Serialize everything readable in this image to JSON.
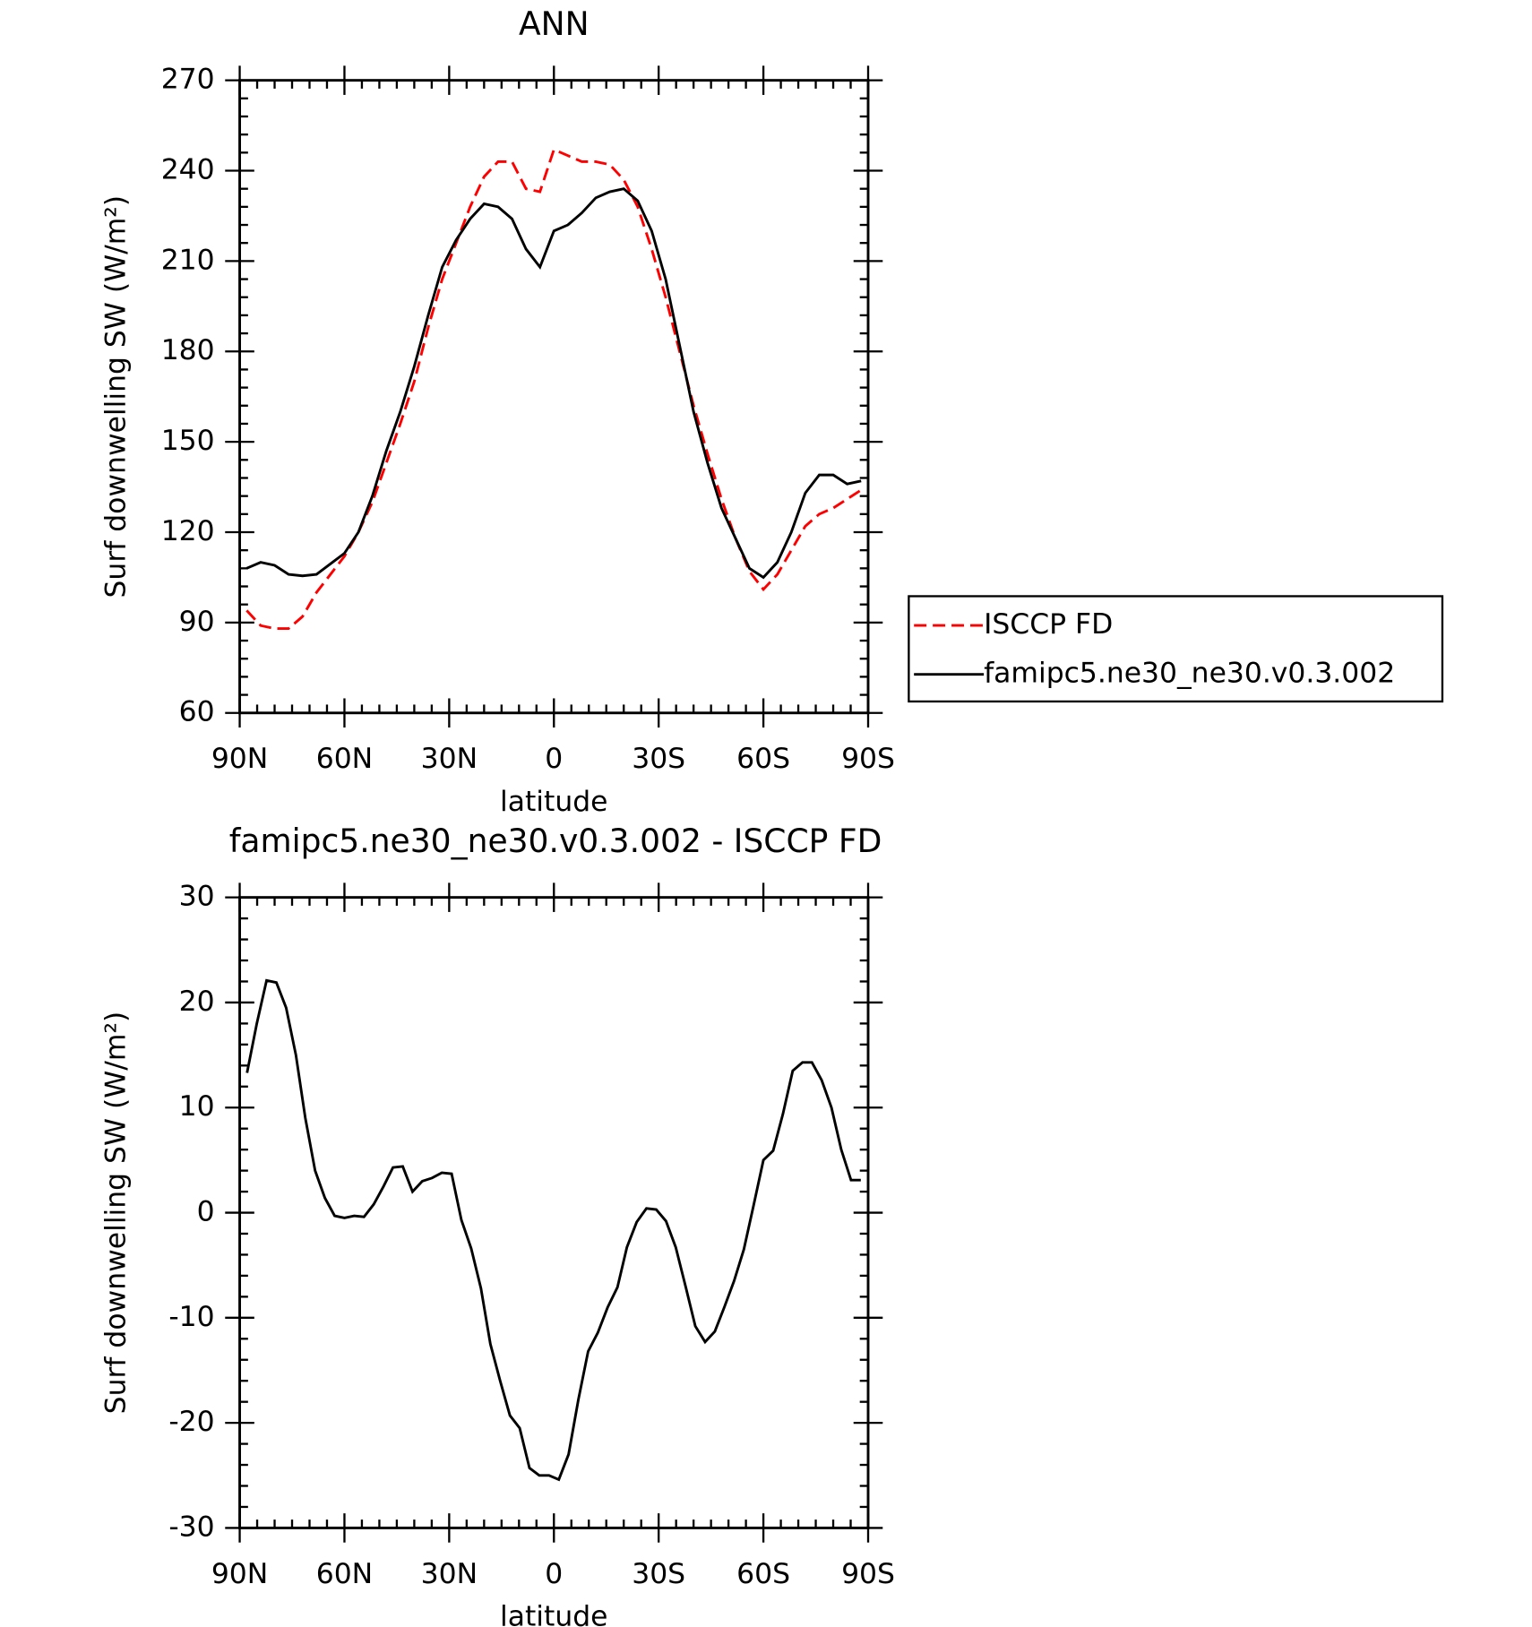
{
  "chart_data": [
    {
      "type": "line",
      "title": "ANN",
      "xlabel": "latitude",
      "ylabel": "Surf downwelling SW (W/m²)",
      "x": [
        88,
        84,
        80,
        76,
        72,
        68,
        64,
        60,
        56,
        52,
        48,
        44,
        40,
        36,
        32,
        28,
        24,
        20,
        16,
        12,
        8,
        4,
        0,
        -4,
        -8,
        -12,
        -16,
        -20,
        -24,
        -28,
        -32,
        -36,
        -40,
        -44,
        -48,
        -52,
        -56,
        -60,
        -64,
        -68,
        -72,
        -76,
        -80,
        -84,
        -88
      ],
      "xlim": [
        90,
        -90
      ],
      "xticks": [
        {
          "value": 90,
          "label": "90N"
        },
        {
          "value": 60,
          "label": "60N"
        },
        {
          "value": 30,
          "label": "30N"
        },
        0,
        {
          "value": -30,
          "label": "30S"
        },
        {
          "value": -60,
          "label": "60S"
        },
        {
          "value": -90,
          "label": "90S"
        }
      ],
      "ylim": [
        60,
        270
      ],
      "yticks": [
        60,
        90,
        120,
        150,
        180,
        210,
        240,
        270
      ],
      "legend": "right",
      "series": [
        {
          "name": "ISCCP FD",
          "color": "#ff0000",
          "style": "dashed",
          "values": [
            94,
            89,
            88,
            88,
            92,
            100,
            106,
            112,
            120,
            130,
            143,
            156,
            170,
            188,
            204,
            216,
            228,
            238,
            243,
            243,
            234,
            233,
            247,
            245,
            243,
            243,
            242,
            237,
            228,
            214,
            198,
            180,
            162,
            146,
            131,
            118,
            107,
            101,
            106,
            114,
            122,
            126,
            128,
            131,
            134
          ]
        },
        {
          "name": "famipc5.ne30_ne30.v0.3.002",
          "color": "#000000",
          "style": "solid",
          "values": [
            108,
            110,
            109,
            106,
            105.5,
            106,
            109.5,
            113,
            120,
            132,
            147,
            160,
            175,
            192,
            208,
            217,
            224,
            229,
            228,
            224,
            214,
            208,
            220,
            222,
            226,
            231,
            233,
            234,
            230,
            220,
            204,
            182,
            160,
            143,
            128,
            118,
            108,
            105,
            110,
            120,
            133,
            139,
            139,
            136,
            137
          ]
        }
      ]
    },
    {
      "type": "line",
      "title": "famipc5.ne30_ne30.v0.3.002 - ISCCP FD",
      "xlabel": "latitude",
      "ylabel": "Surf downwelling SW (W/m²)",
      "x": [
        87.9,
        85.1,
        82.3,
        79.5,
        76.7,
        73.9,
        71.2,
        68.4,
        65.6,
        62.8,
        60.0,
        57.2,
        54.4,
        51.6,
        48.8,
        46.1,
        43.3,
        40.5,
        37.7,
        34.9,
        32.1,
        29.3,
        26.5,
        23.7,
        20.9,
        18.2,
        15.4,
        12.6,
        9.8,
        7.0,
        4.2,
        1.4,
        -1.4,
        -4.2,
        -7.0,
        -9.8,
        -12.6,
        -15.4,
        -18.2,
        -20.9,
        -23.7,
        -26.5,
        -29.3,
        -32.1,
        -34.9,
        -37.7,
        -40.5,
        -43.3,
        -46.1,
        -48.8,
        -51.6,
        -54.4,
        -57.2,
        -60.0,
        -62.8,
        -65.6,
        -68.4,
        -71.2,
        -73.9,
        -76.7,
        -79.5,
        -82.3,
        -85.1,
        -87.9
      ],
      "xlim": [
        90,
        -90
      ],
      "xticks": [
        {
          "value": 90,
          "label": "90N"
        },
        {
          "value": 60,
          "label": "60N"
        },
        {
          "value": 30,
          "label": "30N"
        },
        0,
        {
          "value": -30,
          "label": "30S"
        },
        {
          "value": -60,
          "label": "60S"
        },
        {
          "value": -90,
          "label": "90S"
        }
      ],
      "ylim": [
        -30,
        30
      ],
      "yticks": [
        -30,
        -20,
        -10,
        0,
        10,
        20,
        30
      ],
      "series": [
        {
          "color": "#000000",
          "style": "solid",
          "values": [
            13.3,
            18,
            22.1,
            21.9,
            19.5,
            15,
            9,
            4,
            1.4,
            -0.3,
            -0.5,
            -0.3,
            -0.4,
            0.8,
            2.5,
            4.3,
            4.4,
            2,
            3,
            3.3,
            3.8,
            3.7,
            -0.7,
            -3.4,
            -7.2,
            -12.5,
            -16,
            -19.3,
            -20.5,
            -24.3,
            -25,
            -25,
            -25.4,
            -23,
            -17.8,
            -13.2,
            -11.4,
            -9,
            -7.1,
            -3.3,
            -0.9,
            0.4,
            0.3,
            -0.8,
            -3.3,
            -7,
            -10.8,
            -12.3,
            -11.3,
            -9,
            -6.5,
            -3.5,
            0.7,
            5,
            5.9,
            9.4,
            13.5,
            14.3,
            14.3,
            12.6,
            10,
            6,
            3.1,
            3.1
          ]
        }
      ]
    }
  ]
}
